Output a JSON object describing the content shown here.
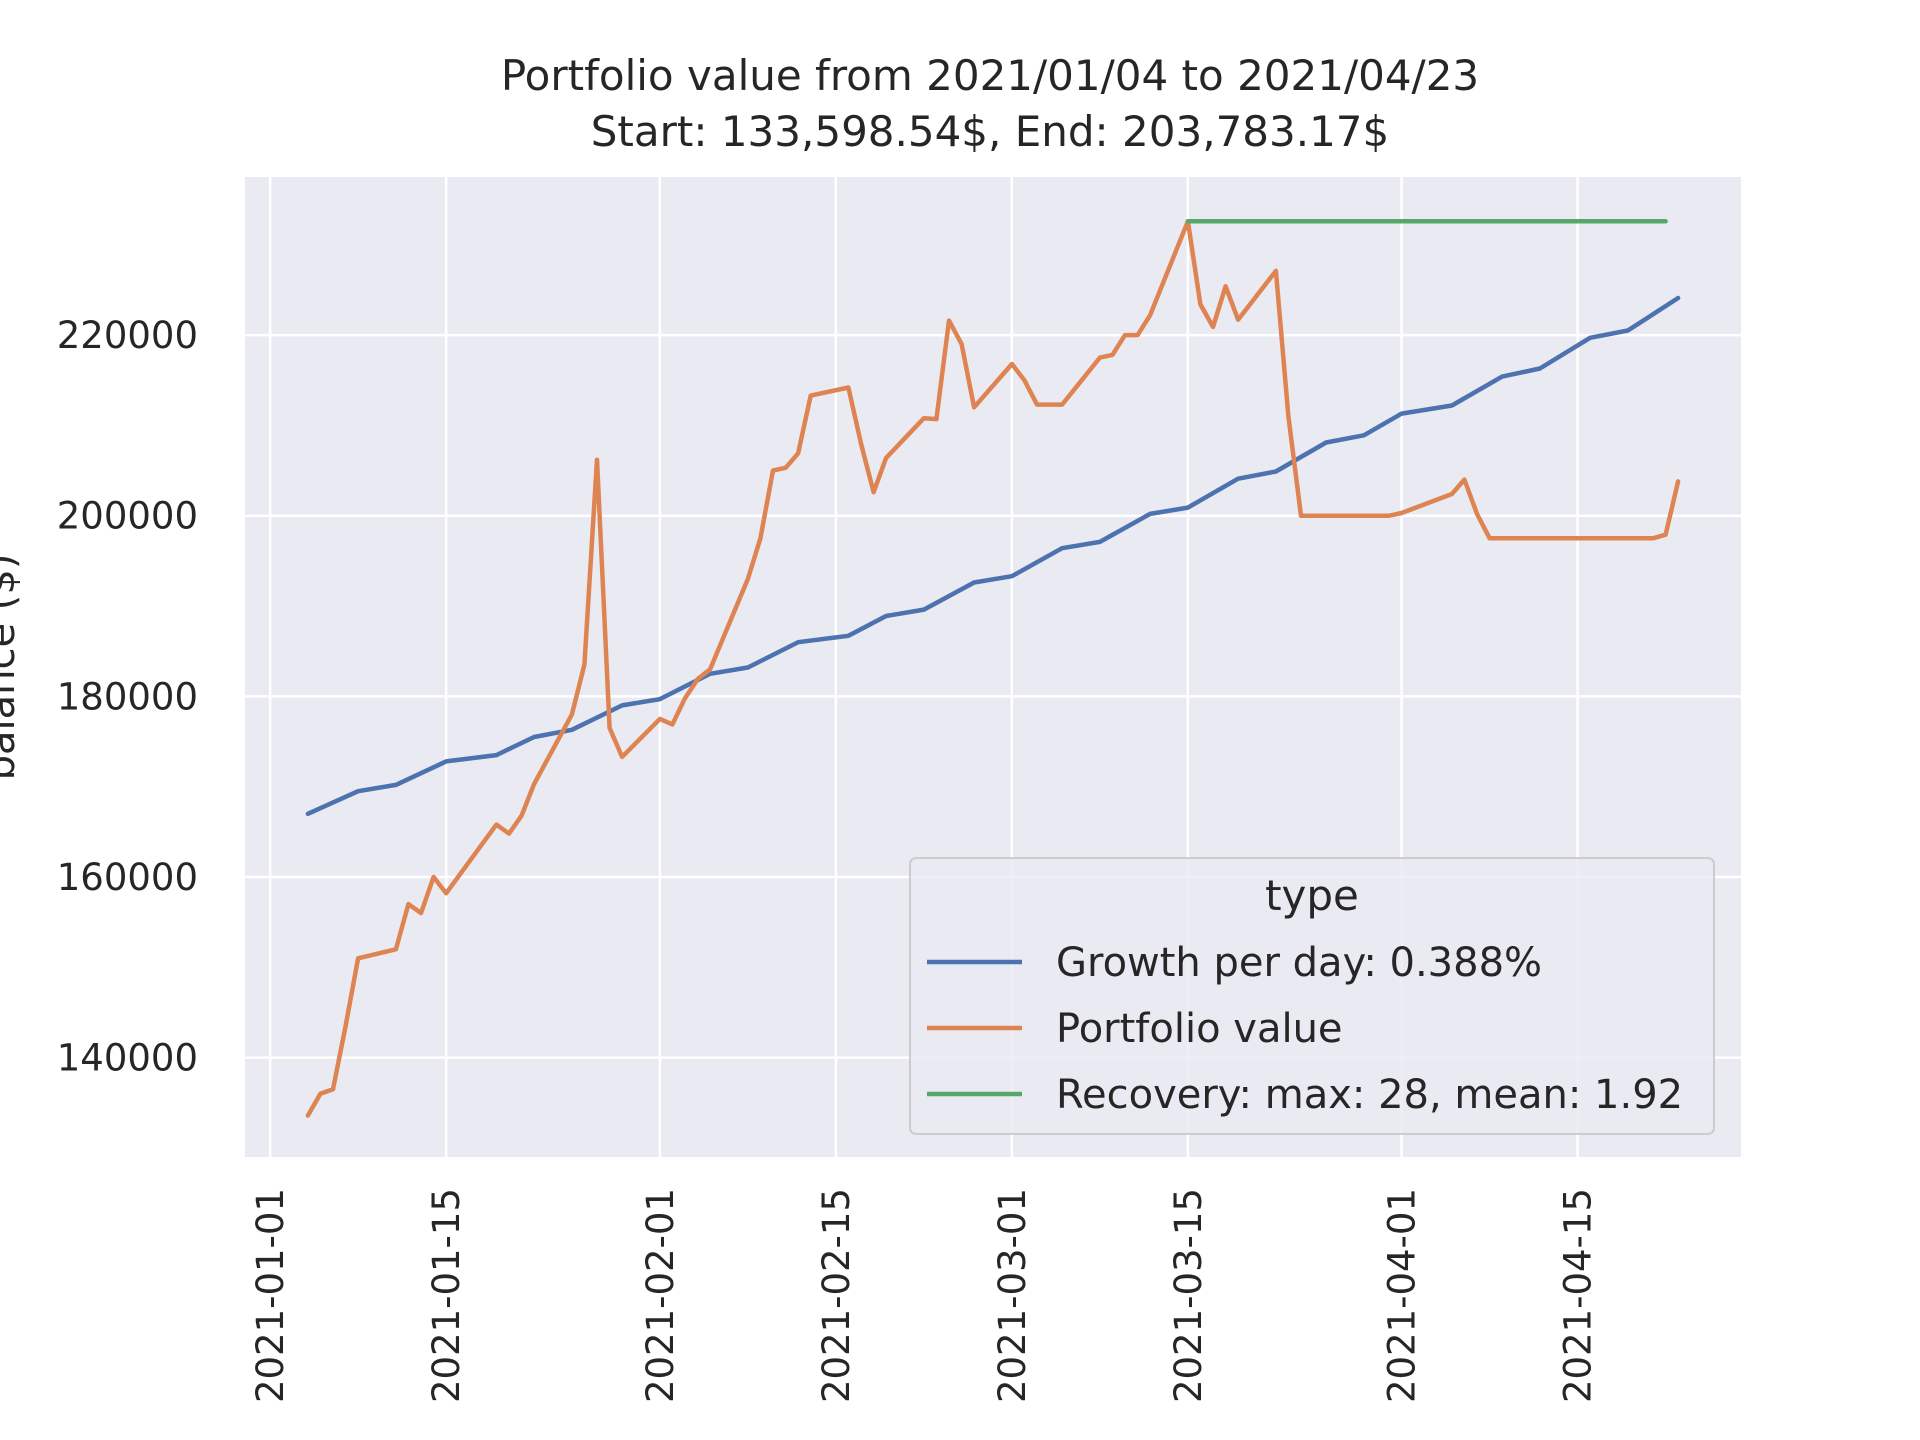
{
  "chart_data": {
    "type": "line",
    "title_line1": "Portfolio value from 2021/01/04 to 2021/04/23",
    "title_line2": "Start: 133,598.54$, End: 203,783.17$",
    "xlabel": "",
    "ylabel": "balance ($)",
    "x_type": "date",
    "xlim": [
      "2020-12-30",
      "2021-04-28"
    ],
    "ylim": [
      129000,
      237500
    ],
    "x_ticks": [
      "2021-01-01",
      "2021-01-15",
      "2021-02-01",
      "2021-02-15",
      "2021-03-01",
      "2021-03-15",
      "2021-04-01",
      "2021-04-15"
    ],
    "y_ticks": [
      140000,
      160000,
      180000,
      200000,
      220000
    ],
    "y_tick_labels": [
      "140000",
      "160000",
      "180000",
      "200000",
      "220000"
    ],
    "grid": true,
    "legend": {
      "title": "type",
      "placement": "bottom-right"
    },
    "series": [
      {
        "name": "Growth per day: 0.388%",
        "color": "#4c72b0",
        "points": [
          [
            "2021-01-04",
            167000
          ],
          [
            "2021-01-08",
            169500
          ],
          [
            "2021-01-11",
            170200
          ],
          [
            "2021-01-15",
            172800
          ],
          [
            "2021-01-19",
            173500
          ],
          [
            "2021-01-22",
            175500
          ],
          [
            "2021-01-25",
            176300
          ],
          [
            "2021-01-29",
            179000
          ],
          [
            "2021-02-01",
            179700
          ],
          [
            "2021-02-05",
            182500
          ],
          [
            "2021-02-08",
            183200
          ],
          [
            "2021-02-12",
            186000
          ],
          [
            "2021-02-16",
            186700
          ],
          [
            "2021-02-19",
            188900
          ],
          [
            "2021-02-22",
            189600
          ],
          [
            "2021-02-26",
            192600
          ],
          [
            "2021-03-01",
            193300
          ],
          [
            "2021-03-05",
            196400
          ],
          [
            "2021-03-08",
            197100
          ],
          [
            "2021-03-12",
            200200
          ],
          [
            "2021-03-15",
            200900
          ],
          [
            "2021-03-19",
            204100
          ],
          [
            "2021-03-22",
            204900
          ],
          [
            "2021-03-26",
            208100
          ],
          [
            "2021-03-29",
            208900
          ],
          [
            "2021-04-01",
            211300
          ],
          [
            "2021-04-05",
            212200
          ],
          [
            "2021-04-09",
            215400
          ],
          [
            "2021-04-12",
            216300
          ],
          [
            "2021-04-16",
            219700
          ],
          [
            "2021-04-19",
            220500
          ],
          [
            "2021-04-23",
            224100
          ]
        ]
      },
      {
        "name": "Portfolio value",
        "color": "#dd8452",
        "points": [
          [
            "2021-01-04",
            133600
          ],
          [
            "2021-01-05",
            136000
          ],
          [
            "2021-01-06",
            136500
          ],
          [
            "2021-01-07",
            143500
          ],
          [
            "2021-01-08",
            151000
          ],
          [
            "2021-01-11",
            152000
          ],
          [
            "2021-01-12",
            157000
          ],
          [
            "2021-01-13",
            156000
          ],
          [
            "2021-01-14",
            160000
          ],
          [
            "2021-01-15",
            158200
          ],
          [
            "2021-01-19",
            165800
          ],
          [
            "2021-01-20",
            164800
          ],
          [
            "2021-01-21",
            166800
          ],
          [
            "2021-01-22",
            170300
          ],
          [
            "2021-01-25",
            178000
          ],
          [
            "2021-01-26",
            183500
          ],
          [
            "2021-01-27",
            206200
          ],
          [
            "2021-01-28",
            176500
          ],
          [
            "2021-01-29",
            173300
          ],
          [
            "2021-02-01",
            177500
          ],
          [
            "2021-02-02",
            176900
          ],
          [
            "2021-02-03",
            179800
          ],
          [
            "2021-02-04",
            181900
          ],
          [
            "2021-02-05",
            183000
          ],
          [
            "2021-02-08",
            193000
          ],
          [
            "2021-02-09",
            197500
          ],
          [
            "2021-02-10",
            205000
          ],
          [
            "2021-02-11",
            205300
          ],
          [
            "2021-02-12",
            206900
          ],
          [
            "2021-02-13",
            213300
          ],
          [
            "2021-02-16",
            214200
          ],
          [
            "2021-02-17",
            208000
          ],
          [
            "2021-02-18",
            202600
          ],
          [
            "2021-02-19",
            206400
          ],
          [
            "2021-02-22",
            210800
          ],
          [
            "2021-02-23",
            210700
          ],
          [
            "2021-02-24",
            221600
          ],
          [
            "2021-02-25",
            219000
          ],
          [
            "2021-02-26",
            212000
          ],
          [
            "2021-03-01",
            216800
          ],
          [
            "2021-03-02",
            215000
          ],
          [
            "2021-03-03",
            212300
          ],
          [
            "2021-03-05",
            212300
          ],
          [
            "2021-03-08",
            217500
          ],
          [
            "2021-03-09",
            217800
          ],
          [
            "2021-03-10",
            220000
          ],
          [
            "2021-03-11",
            220000
          ],
          [
            "2021-03-12",
            222200
          ],
          [
            "2021-03-15",
            232600
          ],
          [
            "2021-03-16",
            223400
          ],
          [
            "2021-03-17",
            220900
          ],
          [
            "2021-03-18",
            225400
          ],
          [
            "2021-03-19",
            221700
          ],
          [
            "2021-03-22",
            227100
          ],
          [
            "2021-03-23",
            211000
          ],
          [
            "2021-03-24",
            200000
          ],
          [
            "2021-03-31",
            200000
          ],
          [
            "2021-04-01",
            200300
          ],
          [
            "2021-04-05",
            202400
          ],
          [
            "2021-04-06",
            204000
          ],
          [
            "2021-04-07",
            200200
          ],
          [
            "2021-04-08",
            197500
          ],
          [
            "2021-04-21",
            197500
          ],
          [
            "2021-04-22",
            197900
          ],
          [
            "2021-04-23",
            203800
          ]
        ]
      },
      {
        "name": "Recovery: max: 28, mean: 1.92",
        "color": "#55a868",
        "points": [
          [
            "2021-03-15",
            232600
          ],
          [
            "2021-04-22",
            232600
          ]
        ]
      }
    ]
  }
}
